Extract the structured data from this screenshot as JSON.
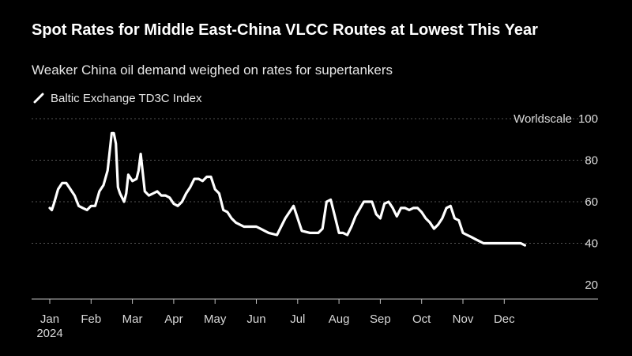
{
  "title": "Spot Rates for Middle East-China VLCC Routes at Lowest This Year",
  "subtitle": "Weaker China oil demand weighed on rates for supertankers",
  "legend": {
    "label": "Baltic Exchange TD3C Index",
    "icon": "diagonal-line-icon"
  },
  "colors": {
    "background": "#000000",
    "line": "#ffffff",
    "grid": "#555555",
    "text": "#d9d9d9"
  },
  "chart_data": {
    "type": "line",
    "title": "Spot Rates for Middle East-China VLCC Routes at Lowest This Year",
    "subtitle": "Weaker China oil demand weighed on rates for supertankers",
    "ylabel": "Worldscale",
    "ylim": [
      20,
      100
    ],
    "yticks": [
      20,
      40,
      60,
      80,
      100
    ],
    "grid": true,
    "xlim": [
      0,
      12.5
    ],
    "x_tick_labels": [
      "Jan",
      "Feb",
      "Mar",
      "Apr",
      "May",
      "Jun",
      "Jul",
      "Aug",
      "Sep",
      "Oct",
      "Nov",
      "Dec"
    ],
    "x_year_label": "2024",
    "legend_position": "top-left",
    "series": [
      {
        "name": "Baltic Exchange TD3C Index",
        "x": [
          0,
          0.05,
          0.1,
          0.2,
          0.3,
          0.4,
          0.5,
          0.6,
          0.7,
          0.8,
          0.9,
          1.0,
          1.1,
          1.2,
          1.3,
          1.4,
          1.5,
          1.55,
          1.6,
          1.65,
          1.7,
          1.75,
          1.8,
          1.85,
          1.9,
          2.0,
          2.1,
          2.15,
          2.2,
          2.3,
          2.4,
          2.5,
          2.6,
          2.7,
          2.8,
          2.9,
          3.0,
          3.1,
          3.2,
          3.3,
          3.4,
          3.5,
          3.6,
          3.7,
          3.8,
          3.9,
          4.0,
          4.1,
          4.2,
          4.3,
          4.4,
          4.5,
          4.6,
          4.7,
          4.8,
          4.9,
          5.0,
          5.1,
          5.2,
          5.3,
          5.5,
          5.7,
          5.9,
          6.1,
          6.3,
          6.5,
          6.6,
          6.7,
          6.8,
          6.9,
          7.0,
          7.1,
          7.2,
          7.3,
          7.4,
          7.6,
          7.8,
          7.9,
          8.0,
          8.1,
          8.2,
          8.3,
          8.4,
          8.5,
          8.6,
          8.7,
          8.8,
          8.9,
          9.0,
          9.1,
          9.2,
          9.3,
          9.4,
          9.5,
          9.6,
          9.7,
          9.8,
          9.9,
          10.0,
          10.1,
          10.2,
          10.3,
          10.4,
          10.5,
          10.6,
          10.7,
          10.8,
          10.9,
          11.0,
          11.1,
          11.2,
          11.3,
          11.4,
          11.5
        ],
        "values": [
          57,
          56,
          59,
          66,
          69,
          69,
          66,
          63,
          58,
          57,
          56,
          58,
          58,
          65,
          68,
          75,
          93,
          93,
          88,
          67,
          64,
          62,
          60,
          64,
          73,
          70,
          71,
          75,
          83,
          65,
          63,
          64,
          65,
          63,
          63,
          62,
          59,
          58,
          60,
          64,
          67,
          71,
          71,
          70,
          72,
          72,
          66,
          64,
          56,
          55,
          52,
          50,
          49,
          48,
          48,
          48,
          48,
          47,
          46,
          45,
          44,
          52,
          58,
          46,
          45,
          45,
          47,
          60,
          61,
          53,
          45,
          45,
          44,
          48,
          53,
          60,
          60,
          54,
          52,
          59,
          60,
          57,
          53,
          57,
          57,
          56,
          57,
          57,
          55,
          52,
          50,
          47,
          49,
          52,
          57,
          58,
          52,
          51,
          45,
          44,
          43,
          42,
          41,
          40,
          40,
          40,
          40,
          40,
          40,
          40,
          40,
          40,
          40,
          39
        ]
      }
    ]
  }
}
